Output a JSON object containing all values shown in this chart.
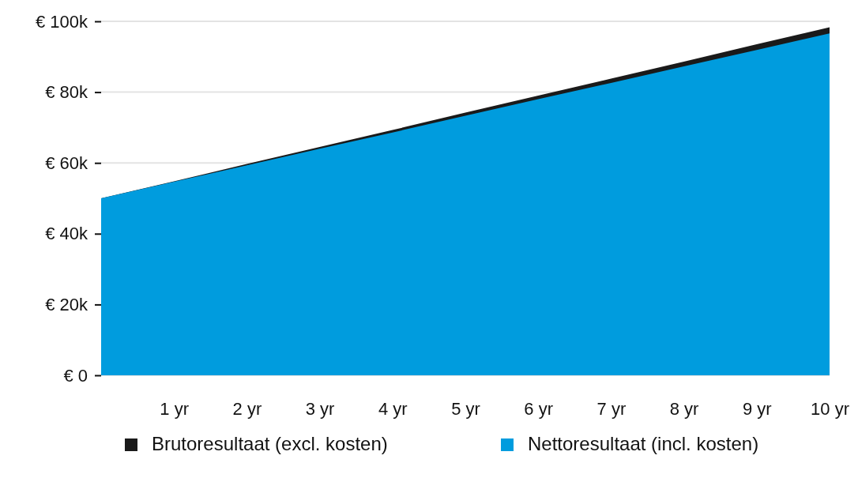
{
  "chart_data": {
    "type": "area",
    "x": [
      0,
      1,
      2,
      3,
      4,
      5,
      6,
      7,
      8,
      9,
      10
    ],
    "xlim": [
      0,
      10
    ],
    "xticks": [
      {
        "value": 1,
        "label": "1 yr"
      },
      {
        "value": 2,
        "label": "2 yr"
      },
      {
        "value": 3,
        "label": "3 yr"
      },
      {
        "value": 4,
        "label": "4 yr"
      },
      {
        "value": 5,
        "label": "5 yr"
      },
      {
        "value": 6,
        "label": "6 yr"
      },
      {
        "value": 7,
        "label": "7 yr"
      },
      {
        "value": 8,
        "label": "8 yr"
      },
      {
        "value": 9,
        "label": "9 yr"
      },
      {
        "value": 10,
        "label": "10 yr"
      }
    ],
    "ylim": [
      0,
      100
    ],
    "yticks": [
      {
        "value": 0,
        "label": "€ 0"
      },
      {
        "value": 20,
        "label": "€ 20k"
      },
      {
        "value": 40,
        "label": "€ 40k"
      },
      {
        "value": 60,
        "label": "€ 60k"
      },
      {
        "value": 80,
        "label": "€ 80k"
      },
      {
        "value": 100,
        "label": "€ 100k"
      }
    ],
    "grid": "y",
    "legend": "bottom",
    "series": [
      {
        "name": "Brutoresultaat (excl. kosten)",
        "color": "#1a1a1a",
        "values": [
          50,
          54.8,
          59.7,
          64.5,
          69.3,
          74.2,
          79.0,
          83.8,
          88.6,
          93.5,
          98.3
        ]
      },
      {
        "name": "Nettoresultaat (incl. kosten)",
        "color": "#009cde",
        "values": [
          50,
          54.7,
          59.3,
          64.0,
          68.6,
          73.3,
          78.0,
          82.6,
          87.3,
          91.9,
          96.6
        ]
      }
    ]
  }
}
